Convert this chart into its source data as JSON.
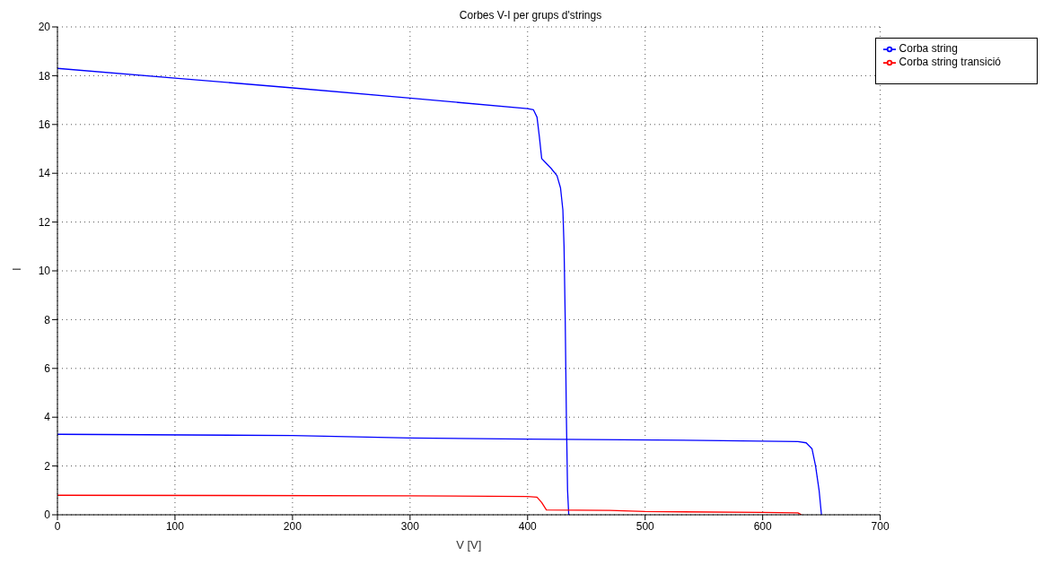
{
  "chart_data": {
    "type": "line",
    "title": "Corbes V-I per grups d'strings",
    "xlabel": "V [V]",
    "ylabel": "I",
    "xlim": [
      0,
      700
    ],
    "xticks": [
      0,
      100,
      200,
      300,
      400,
      500,
      600,
      700
    ],
    "ylim": [
      0,
      20
    ],
    "yticks": [
      0,
      2,
      4,
      6,
      8,
      10,
      12,
      14,
      16,
      18,
      20
    ],
    "grid": true,
    "legend": "top right",
    "marker": "none",
    "line_style": "solid",
    "series": [
      {
        "name": "Corba string",
        "color": "#0000ff",
        "x": [
          0,
          100,
          200,
          300,
          400,
          405,
          408,
          410,
          412,
          415,
          420,
          425,
          428,
          430,
          431,
          432,
          433,
          434,
          435
        ],
        "values": [
          18.3,
          17.9,
          17.5,
          17.08,
          16.65,
          16.6,
          16.3,
          15.5,
          14.6,
          14.45,
          14.2,
          13.9,
          13.4,
          12.5,
          11,
          8,
          4,
          1,
          0
        ]
      },
      {
        "name": "Corba string transició",
        "color": "#ff0000",
        "x": [
          0,
          300,
          400,
          408,
          412,
          416,
          470,
          500,
          600,
          630,
          633
        ],
        "values": [
          0.8,
          0.78,
          0.75,
          0.72,
          0.5,
          0.2,
          0.18,
          0.13,
          0.1,
          0.08,
          0
        ]
      },
      {
        "color": "#0000ff",
        "x": [
          0,
          200,
          300,
          400,
          550,
          630,
          637,
          642,
          645,
          648,
          650
        ],
        "values": [
          3.3,
          3.25,
          3.15,
          3.1,
          3.05,
          3.0,
          2.95,
          2.7,
          2.0,
          1,
          0
        ]
      }
    ]
  }
}
